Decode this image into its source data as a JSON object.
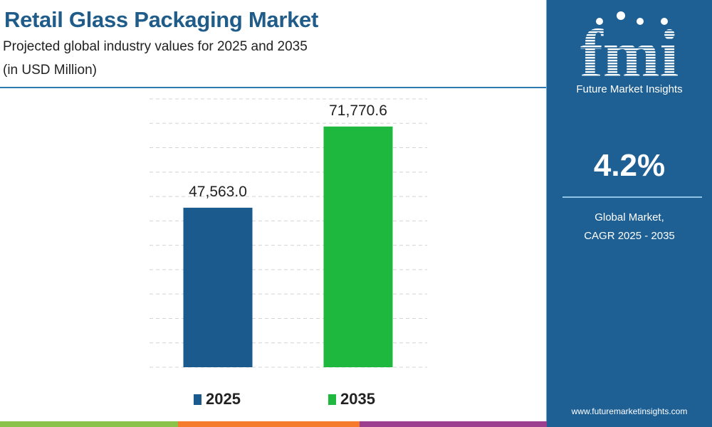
{
  "header": {
    "title": "Retail Glass Packaging Market",
    "subtitle": "Projected global industry values for 2025 and 2035",
    "unit": "(in USD Million)"
  },
  "chart_data": {
    "type": "bar",
    "categories": [
      "2025",
      "2035"
    ],
    "values": [
      47563.0,
      71770.6
    ],
    "value_labels": [
      "47,563.0",
      "71,770.6"
    ],
    "colors": [
      "#1a5a8c",
      "#1eb83e"
    ],
    "ylim": [
      0,
      80000
    ],
    "grid": true,
    "legend": "bottom"
  },
  "panel": {
    "brand_logo": "fmi",
    "brand_name": "Future Market Insights",
    "cagr_value": "4.2%",
    "cagr_label_line1": "Global Market,",
    "cagr_label_line2": "CAGR 2025 - 2035",
    "website": "www.futuremarketinsights.com",
    "background": "#1e5f94"
  }
}
